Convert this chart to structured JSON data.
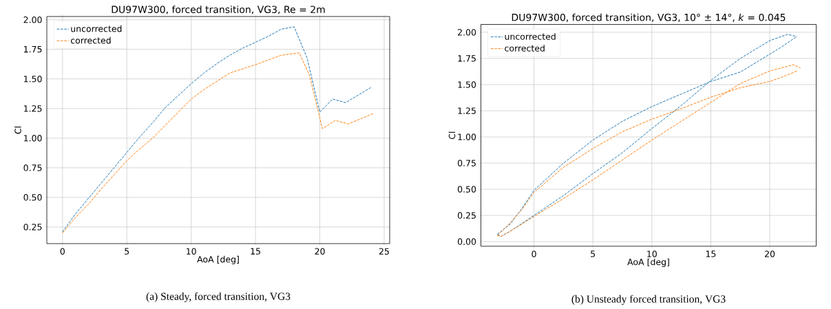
{
  "chart_data": [
    {
      "type": "line",
      "title": "DU97W300, forced transition, VG3, Re = 2m",
      "xlabel": "AoA [deg]",
      "ylabel": "Cl",
      "xlim": [
        -1.22,
        25.43
      ],
      "ylim": [
        0.11,
        2.027
      ],
      "xticks": [
        0,
        5,
        10,
        15,
        20,
        25
      ],
      "yticks": [
        {
          "value": 0.25,
          "label": "0.25"
        },
        {
          "value": 0.5,
          "label": "0.50"
        },
        {
          "value": 0.75,
          "label": "0.75"
        },
        {
          "value": 1.0,
          "label": "1.00"
        },
        {
          "value": 1.25,
          "label": "1.25"
        },
        {
          "value": 1.5,
          "label": "1.50"
        },
        {
          "value": 1.75,
          "label": "1.75"
        },
        {
          "value": 2.0,
          "label": "2.00"
        }
      ],
      "grid": true,
      "legend": "top left",
      "line_style": "dashed",
      "series": [
        {
          "name": "uncorrected",
          "color": "#1f77b4",
          "x": [
            0,
            1,
            2,
            3,
            4,
            5,
            6,
            7,
            8,
            9,
            10,
            11,
            12,
            13,
            14,
            15,
            16,
            17,
            18,
            19,
            20,
            21,
            22,
            24
          ],
          "values": [
            0.21,
            0.36,
            0.49,
            0.62,
            0.75,
            0.88,
            1.01,
            1.13,
            1.26,
            1.36,
            1.46,
            1.55,
            1.63,
            1.7,
            1.76,
            1.81,
            1.86,
            1.92,
            1.94,
            1.68,
            1.22,
            1.33,
            1.3,
            1.43
          ]
        },
        {
          "name": "corrected",
          "color": "#ff7f0e",
          "x": [
            0,
            1,
            2,
            3,
            4,
            5,
            6,
            7,
            8,
            9,
            10,
            11,
            12,
            13,
            15,
            17,
            18.4,
            19.2,
            20.2,
            21.2,
            22.2,
            24.2
          ],
          "values": [
            0.2,
            0.33,
            0.44,
            0.57,
            0.69,
            0.81,
            0.91,
            1.0,
            1.11,
            1.22,
            1.33,
            1.41,
            1.48,
            1.55,
            1.62,
            1.7,
            1.72,
            1.53,
            1.08,
            1.15,
            1.12,
            1.21
          ]
        }
      ],
      "annotations": [
        "(a) Steady, forced transition, VG3"
      ]
    },
    {
      "type": "line",
      "title": "DU97W300, forced transition, VG3, 10° ± 14°, *k* = 0.045",
      "xlabel": "AoA [deg]",
      "ylabel": "Cl",
      "xlim": [
        -4.5,
        23.94
      ],
      "ylim": [
        -0.044,
        2.075
      ],
      "xticks": [
        0,
        5,
        10,
        15,
        20
      ],
      "yticks": [
        {
          "value": 0,
          "label": "0.00"
        },
        {
          "value": 0.25,
          "label": "0.25"
        },
        {
          "value": 0.5,
          "label": "0.50"
        },
        {
          "value": 0.75,
          "label": "0.75"
        },
        {
          "value": 1.0,
          "label": "1.00"
        },
        {
          "value": 1.25,
          "label": "1.25"
        },
        {
          "value": 1.5,
          "label": "1.50"
        },
        {
          "value": 1.75,
          "label": "1.75"
        },
        {
          "value": 2.0,
          "label": "2.00"
        }
      ],
      "grid": true,
      "legend": "top left",
      "line_style": "dashed",
      "series": [
        {
          "name": "uncorrected",
          "color": "#1f77b4",
          "x": [
            -3.1,
            -2.8,
            -2,
            0,
            2.5,
            5,
            7.5,
            10,
            12.5,
            15,
            17.5,
            20,
            21.5,
            22.3
          ],
          "values": [
            0.07,
            0.05,
            0.1,
            0.25,
            0.44,
            0.65,
            0.85,
            1.08,
            1.3,
            1.54,
            1.75,
            1.92,
            1.98,
            1.96
          ]
        },
        {
          "color": "#1f77b4",
          "x": [
            -3.1,
            -2,
            -1,
            0,
            2.5,
            5,
            7.5,
            10,
            12.5,
            15,
            17.5,
            20,
            21,
            22.3
          ],
          "values": [
            0.07,
            0.17,
            0.32,
            0.49,
            0.75,
            0.97,
            1.15,
            1.29,
            1.41,
            1.53,
            1.62,
            1.79,
            1.86,
            1.96
          ]
        },
        {
          "name": "corrected",
          "color": "#ff7f0e",
          "x": [
            -3.1,
            -2.8,
            -2,
            0,
            2.5,
            5,
            7.5,
            10,
            12.5,
            15,
            17.5,
            20,
            22,
            22.6
          ],
          "values": [
            0.06,
            0.05,
            0.1,
            0.24,
            0.41,
            0.59,
            0.78,
            0.97,
            1.15,
            1.33,
            1.51,
            1.63,
            1.69,
            1.66
          ]
        },
        {
          "color": "#ff7f0e",
          "x": [
            -3.1,
            -2,
            -1,
            0,
            2.5,
            5,
            7.5,
            10,
            12.5,
            15,
            17.5,
            20,
            21,
            22.3
          ],
          "values": [
            0.06,
            0.18,
            0.31,
            0.47,
            0.71,
            0.89,
            1.05,
            1.17,
            1.27,
            1.38,
            1.47,
            1.53,
            1.57,
            1.63
          ]
        }
      ],
      "annotations": [
        "(b) Unsteady forced transition, VG3"
      ]
    }
  ]
}
